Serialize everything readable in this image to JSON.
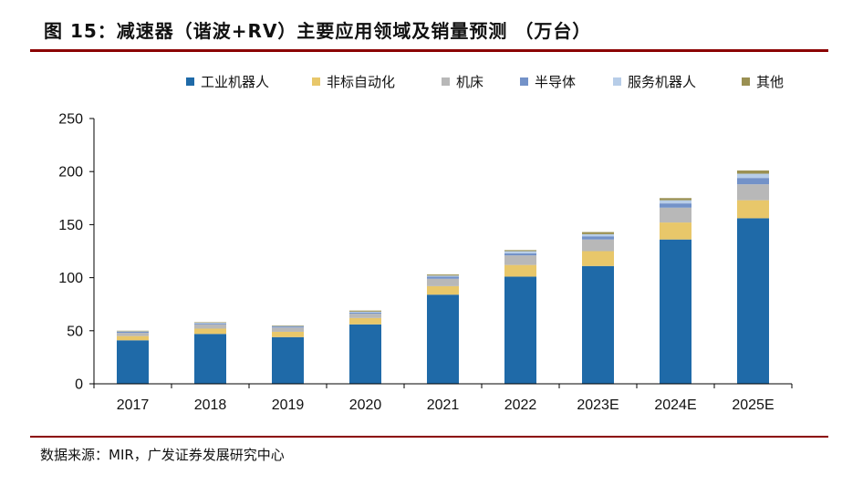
{
  "header": {
    "title": "图 15：减速器（谐波+RV）主要应用领域及销量预测 （万台）"
  },
  "footer": {
    "source": "数据来源：MIR，广发证券发展研究中心"
  },
  "colors": {
    "title_rule": "#8b0000",
    "axis": "#000000"
  },
  "chart_data": {
    "type": "bar",
    "stacked": true,
    "title": "",
    "xlabel": "",
    "ylabel": "",
    "ylim": [
      0,
      250
    ],
    "yticks": [
      0,
      50,
      100,
      150,
      200,
      250
    ],
    "grid": false,
    "legend_position": "top",
    "categories": [
      "2017",
      "2018",
      "2019",
      "2020",
      "2021",
      "2022",
      "2023E",
      "2024E",
      "2025E"
    ],
    "series": [
      {
        "name": "工业机器人",
        "color": "#1f6aa8",
        "values": [
          41,
          47,
          44,
          56,
          84,
          101,
          111,
          136,
          156
        ]
      },
      {
        "name": "非标自动化",
        "color": "#e8c76a",
        "values": [
          4,
          5,
          5,
          6,
          8,
          11,
          14,
          16,
          17
        ]
      },
      {
        "name": "机床",
        "color": "#b8b8b8",
        "values": [
          3,
          4,
          4,
          4,
          7,
          9,
          11,
          14,
          15
        ]
      },
      {
        "name": "半导体",
        "color": "#7392c8",
        "values": [
          1,
          1,
          1,
          1,
          2,
          2,
          3,
          4,
          6
        ]
      },
      {
        "name": "服务机器人",
        "color": "#b7cde8",
        "values": [
          0.5,
          0.5,
          0.5,
          1,
          1,
          2,
          2,
          3,
          4
        ]
      },
      {
        "name": "其他",
        "color": "#9a9052",
        "values": [
          0.5,
          0.5,
          0.5,
          1,
          1,
          1,
          2,
          2,
          3
        ]
      }
    ]
  }
}
